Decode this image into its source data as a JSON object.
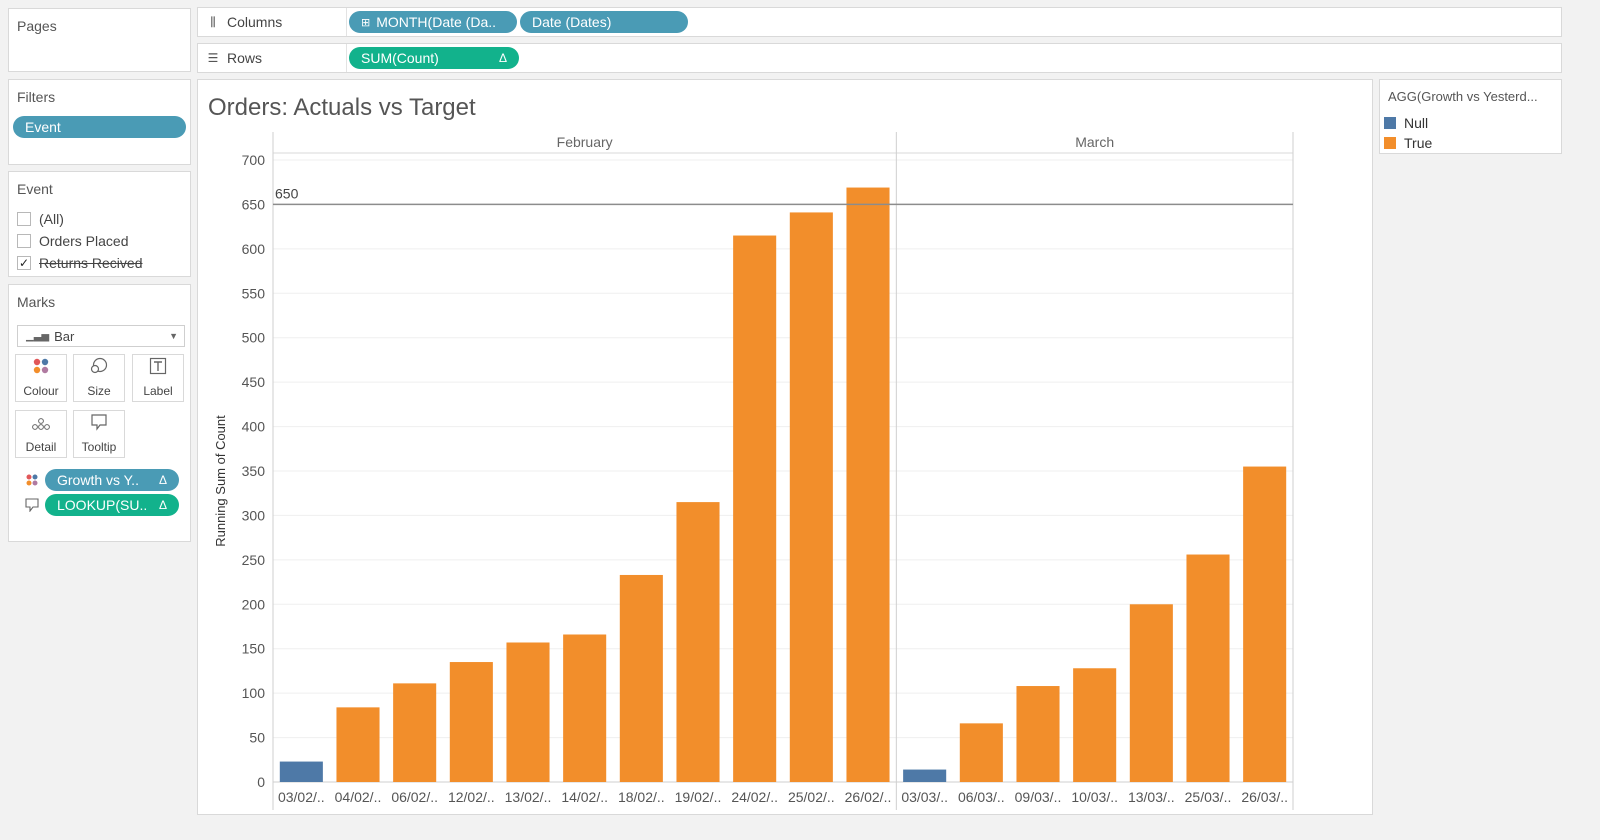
{
  "pages": {
    "title": "Pages"
  },
  "shelves": {
    "columns": {
      "label": "Columns",
      "pills": [
        "MONTH(Date (Da..",
        "Date (Dates)"
      ]
    },
    "rows": {
      "label": "Rows",
      "pills": [
        "SUM(Count)"
      ],
      "delta": "Δ"
    }
  },
  "filters": {
    "title": "Filters",
    "pill": "Event"
  },
  "event_filter": {
    "title": "Event",
    "items": [
      {
        "label": "(All)",
        "checked": false
      },
      {
        "label": "Orders Placed",
        "checked": false
      },
      {
        "label": "Returns Recived",
        "checked": true
      }
    ]
  },
  "marks": {
    "title": "Marks",
    "type": "Bar",
    "buttons": [
      "Colour",
      "Size",
      "Label",
      "Detail",
      "Tooltip"
    ],
    "pills": [
      {
        "label": "Growth vs Y..",
        "delta": "Δ"
      },
      {
        "label": "LOOKUP(SU..",
        "delta": "Δ"
      }
    ]
  },
  "legend": {
    "title": "AGG(Growth vs Yesterd...",
    "items": [
      {
        "label": "Null",
        "color": "#4e79a7"
      },
      {
        "label": "True",
        "color": "#f28e2b"
      }
    ]
  },
  "chart_data": {
    "type": "bar",
    "title": "Orders: Actuals vs Target",
    "ylabel": "Running Sum of Count",
    "ylim": [
      0,
      700
    ],
    "yticks": [
      0,
      50,
      100,
      150,
      200,
      250,
      300,
      350,
      400,
      450,
      500,
      550,
      600,
      650,
      700
    ],
    "reference_line": {
      "value": 650,
      "label": "650"
    },
    "panes": [
      {
        "label": "February",
        "categories": [
          "03/02/..",
          "04/02/..",
          "06/02/..",
          "12/02/..",
          "13/02/..",
          "14/02/..",
          "18/02/..",
          "19/02/..",
          "24/02/..",
          "25/02/..",
          "26/02/.."
        ],
        "values": [
          23,
          84,
          111,
          135,
          157,
          166,
          233,
          315,
          615,
          641,
          669
        ],
        "colors": [
          "Null",
          "True",
          "True",
          "True",
          "True",
          "True",
          "True",
          "True",
          "True",
          "True",
          "True"
        ]
      },
      {
        "label": "March",
        "categories": [
          "03/03/..",
          "06/03/..",
          "09/03/..",
          "10/03/..",
          "13/03/..",
          "25/03/..",
          "26/03/.."
        ],
        "values": [
          14,
          66,
          108,
          128,
          200,
          256,
          355
        ],
        "colors": [
          "Null",
          "True",
          "True",
          "True",
          "True",
          "True",
          "True"
        ]
      }
    ]
  }
}
